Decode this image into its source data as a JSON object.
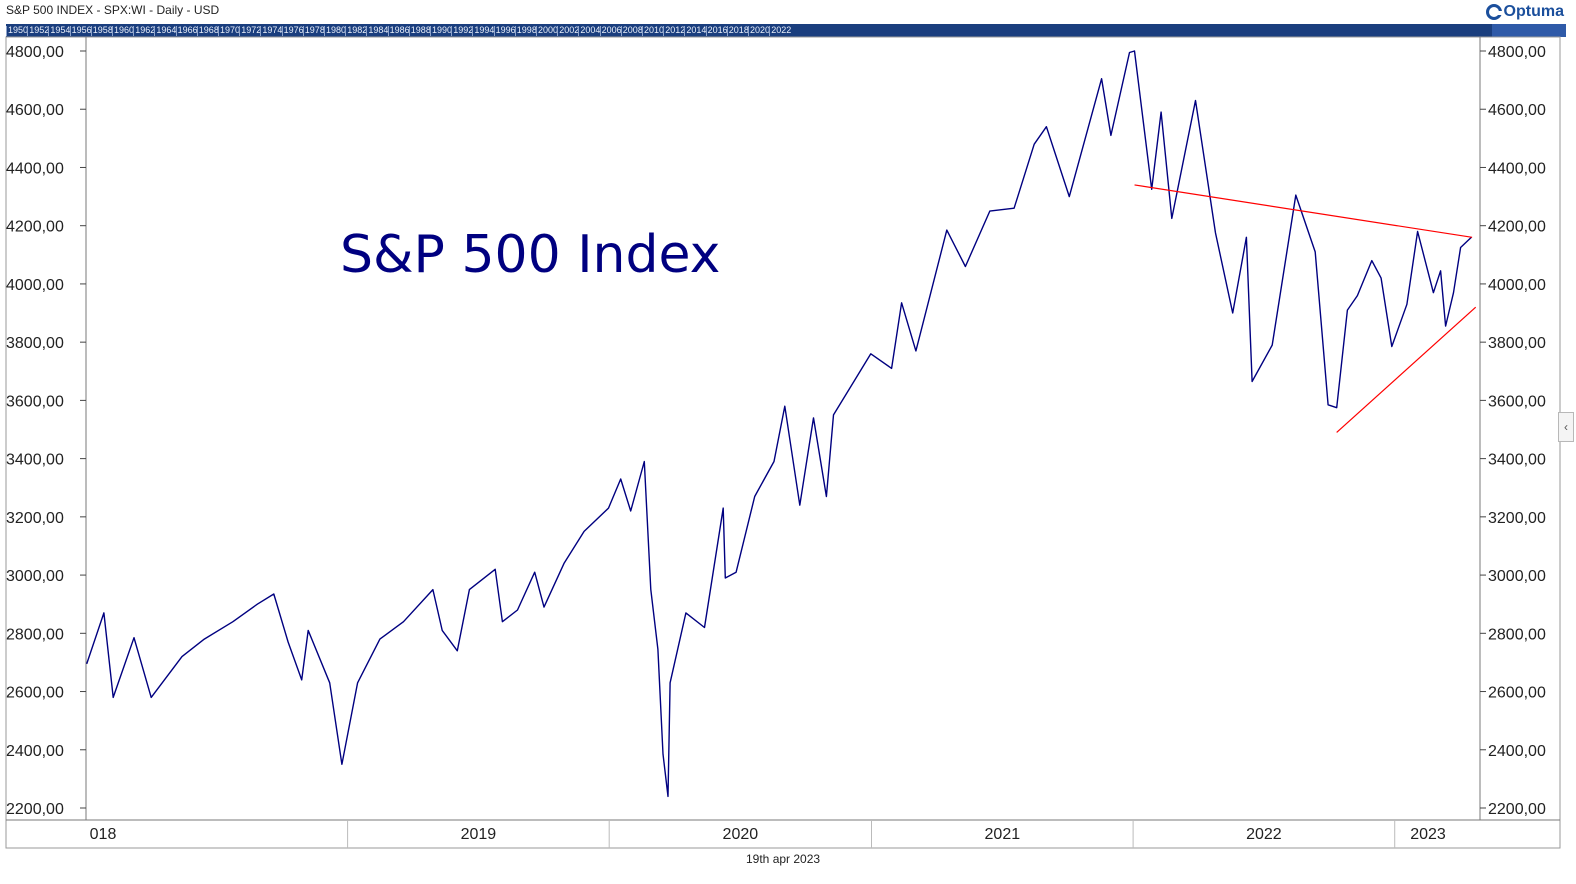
{
  "header": {
    "title": "S&P 500 INDEX - SPX:WI - Daily - USD",
    "logo_text": "Optuma"
  },
  "overview_strip": {
    "years": [
      "1950",
      "1952",
      "1954",
      "1956",
      "1958",
      "1960",
      "1962",
      "1964",
      "1966",
      "1968",
      "1970",
      "1972",
      "1974",
      "1976",
      "1978",
      "1980",
      "1982",
      "1984",
      "1986",
      "1988",
      "1990",
      "1992",
      "1994",
      "1996",
      "1998",
      "2000",
      "2002",
      "2004",
      "2006",
      "2008",
      "2010",
      "2012",
      "2014",
      "2016",
      "2018",
      "2020",
      "2022"
    ]
  },
  "footer": {
    "date": "19th apr 2023"
  },
  "colors": {
    "price_line": "#000080",
    "trendline": "#ff0000",
    "annotation": "#000080",
    "strip": "#1a3e7e"
  },
  "chart_data": {
    "type": "line",
    "title": "S&P 500 Index",
    "x_range": [
      "2018-01-01",
      "2023-04-30"
    ],
    "ylim": [
      2170,
      4830
    ],
    "y_ticks": [
      "2200,00",
      "2400,00",
      "2600,00",
      "2800,00",
      "3000,00",
      "3200,00",
      "3400,00",
      "3600,00",
      "3800,00",
      "4000,00",
      "4200,00",
      "4400,00",
      "4600,00",
      "4800,00"
    ],
    "x_ticks": [
      "018",
      "2019",
      "2020",
      "2021",
      "2022",
      "2023"
    ],
    "grid": false,
    "axis_right": true,
    "series": [
      {
        "x": [
          "2018-01-02",
          "2018-01-26",
          "2018-02-08",
          "2018-03-09",
          "2018-04-02",
          "2018-05-15",
          "2018-06-15",
          "2018-07-25",
          "2018-08-28",
          "2018-09-20",
          "2018-10-10",
          "2018-10-29",
          "2018-11-07",
          "2018-12-07",
          "2018-12-24",
          "2019-01-15",
          "2019-02-15",
          "2019-03-20",
          "2019-04-30",
          "2019-05-13",
          "2019-06-03",
          "2019-06-20",
          "2019-07-26",
          "2019-08-05",
          "2019-08-26",
          "2019-09-19",
          "2019-10-02",
          "2019-10-30",
          "2019-11-27",
          "2019-12-31",
          "2020-01-17",
          "2020-01-31",
          "2020-02-19",
          "2020-02-28",
          "2020-03-09",
          "2020-03-16",
          "2020-03-23",
          "2020-03-26",
          "2020-04-17",
          "2020-05-13",
          "2020-06-08",
          "2020-06-11",
          "2020-06-26",
          "2020-07-22",
          "2020-08-18",
          "2020-09-02",
          "2020-09-23",
          "2020-10-12",
          "2020-10-30",
          "2020-11-09",
          "2020-12-31",
          "2021-01-29",
          "2021-02-12",
          "2021-03-04",
          "2021-04-16",
          "2021-05-12",
          "2021-06-15",
          "2021-07-19",
          "2021-08-16",
          "2021-09-02",
          "2021-10-04",
          "2021-11-18",
          "2021-12-01",
          "2021-12-27",
          "2022-01-03",
          "2022-01-27",
          "2022-02-09",
          "2022-02-24",
          "2022-03-29",
          "2022-04-26",
          "2022-05-20",
          "2022-06-08",
          "2022-06-16",
          "2022-07-14",
          "2022-08-16",
          "2022-09-12",
          "2022-09-30",
          "2022-10-12",
          "2022-10-27",
          "2022-11-10",
          "2022-11-30",
          "2022-12-13",
          "2022-12-28",
          "2023-01-18",
          "2023-02-02",
          "2023-02-24",
          "2023-03-06",
          "2023-03-13",
          "2023-03-24",
          "2023-04-03",
          "2023-04-18"
        ],
        "y": [
          2695,
          2870,
          2580,
          2785,
          2580,
          2720,
          2780,
          2840,
          2900,
          2935,
          2770,
          2640,
          2810,
          2630,
          2350,
          2630,
          2780,
          2840,
          2950,
          2810,
          2740,
          2950,
          3020,
          2840,
          2880,
          3010,
          2890,
          3040,
          3150,
          3230,
          3330,
          3220,
          3390,
          2950,
          2745,
          2385,
          2240,
          2630,
          2870,
          2820,
          3230,
          2990,
          3010,
          3270,
          3390,
          3580,
          3240,
          3540,
          3270,
          3550,
          3760,
          3710,
          3935,
          3770,
          4185,
          4060,
          4250,
          4260,
          4480,
          4540,
          4300,
          4705,
          4510,
          4795,
          4800,
          4325,
          4590,
          4225,
          4630,
          4175,
          3900,
          4160,
          3665,
          3790,
          4305,
          4110,
          3585,
          3575,
          3910,
          3960,
          4080,
          4020,
          3785,
          3930,
          4180,
          3970,
          4045,
          3855,
          3970,
          4125,
          4160
        ]
      }
    ],
    "trendlines": [
      {
        "x": [
          "2022-01-03",
          "2023-04-19"
        ],
        "y": [
          4340,
          4160
        ]
      },
      {
        "x": [
          "2022-10-12",
          "2023-04-24"
        ],
        "y": [
          3490,
          3920
        ]
      }
    ],
    "annotations": [
      {
        "text": "S&P 500 Index",
        "x": "2020-11-20",
        "y": 4110
      }
    ]
  }
}
